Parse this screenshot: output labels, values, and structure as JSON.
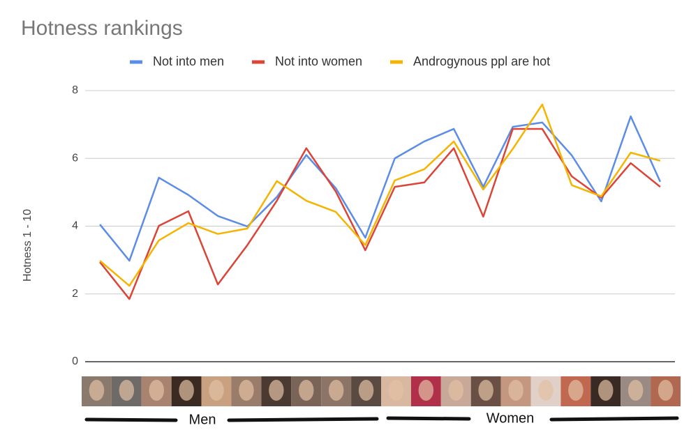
{
  "chart_data": {
    "type": "line",
    "title": "Hotness rankings",
    "y_label": "Hotness 1 - 10",
    "categories": [
      null,
      null,
      null,
      null,
      null,
      null,
      null,
      null,
      null,
      null,
      null,
      null,
      null,
      null,
      null,
      null,
      null,
      null,
      null,
      null
    ],
    "series": [
      {
        "name": "Not into men",
        "color": "#5b8de8",
        "values": [
          4.05,
          2.98,
          5.43,
          4.92,
          4.3,
          3.99,
          4.86,
          6.1,
          5.12,
          3.66,
          6.0,
          6.5,
          6.87,
          5.16,
          6.93,
          7.06,
          6.09,
          4.73,
          7.24,
          5.31
        ]
      },
      {
        "name": "Not into women",
        "color": "#db4437",
        "values": [
          2.94,
          1.85,
          4.01,
          4.44,
          2.28,
          3.44,
          4.75,
          6.3,
          5.02,
          3.29,
          5.16,
          5.29,
          6.3,
          4.28,
          6.87,
          6.87,
          5.47,
          4.84,
          5.86,
          5.16
        ]
      },
      {
        "name": "Androgynous ppl are hot",
        "color": "#f4b400",
        "values": [
          2.98,
          2.24,
          3.58,
          4.09,
          3.77,
          3.93,
          5.33,
          4.75,
          4.42,
          3.44,
          5.35,
          5.68,
          6.5,
          5.08,
          6.28,
          7.59,
          5.21,
          4.88,
          6.17,
          5.93
        ]
      }
    ],
    "ylim": [
      0,
      8
    ],
    "yticks": [
      0,
      2,
      4,
      6,
      8
    ],
    "grid": true,
    "legend": "top",
    "annotations": [
      "Men",
      "Women"
    ]
  }
}
